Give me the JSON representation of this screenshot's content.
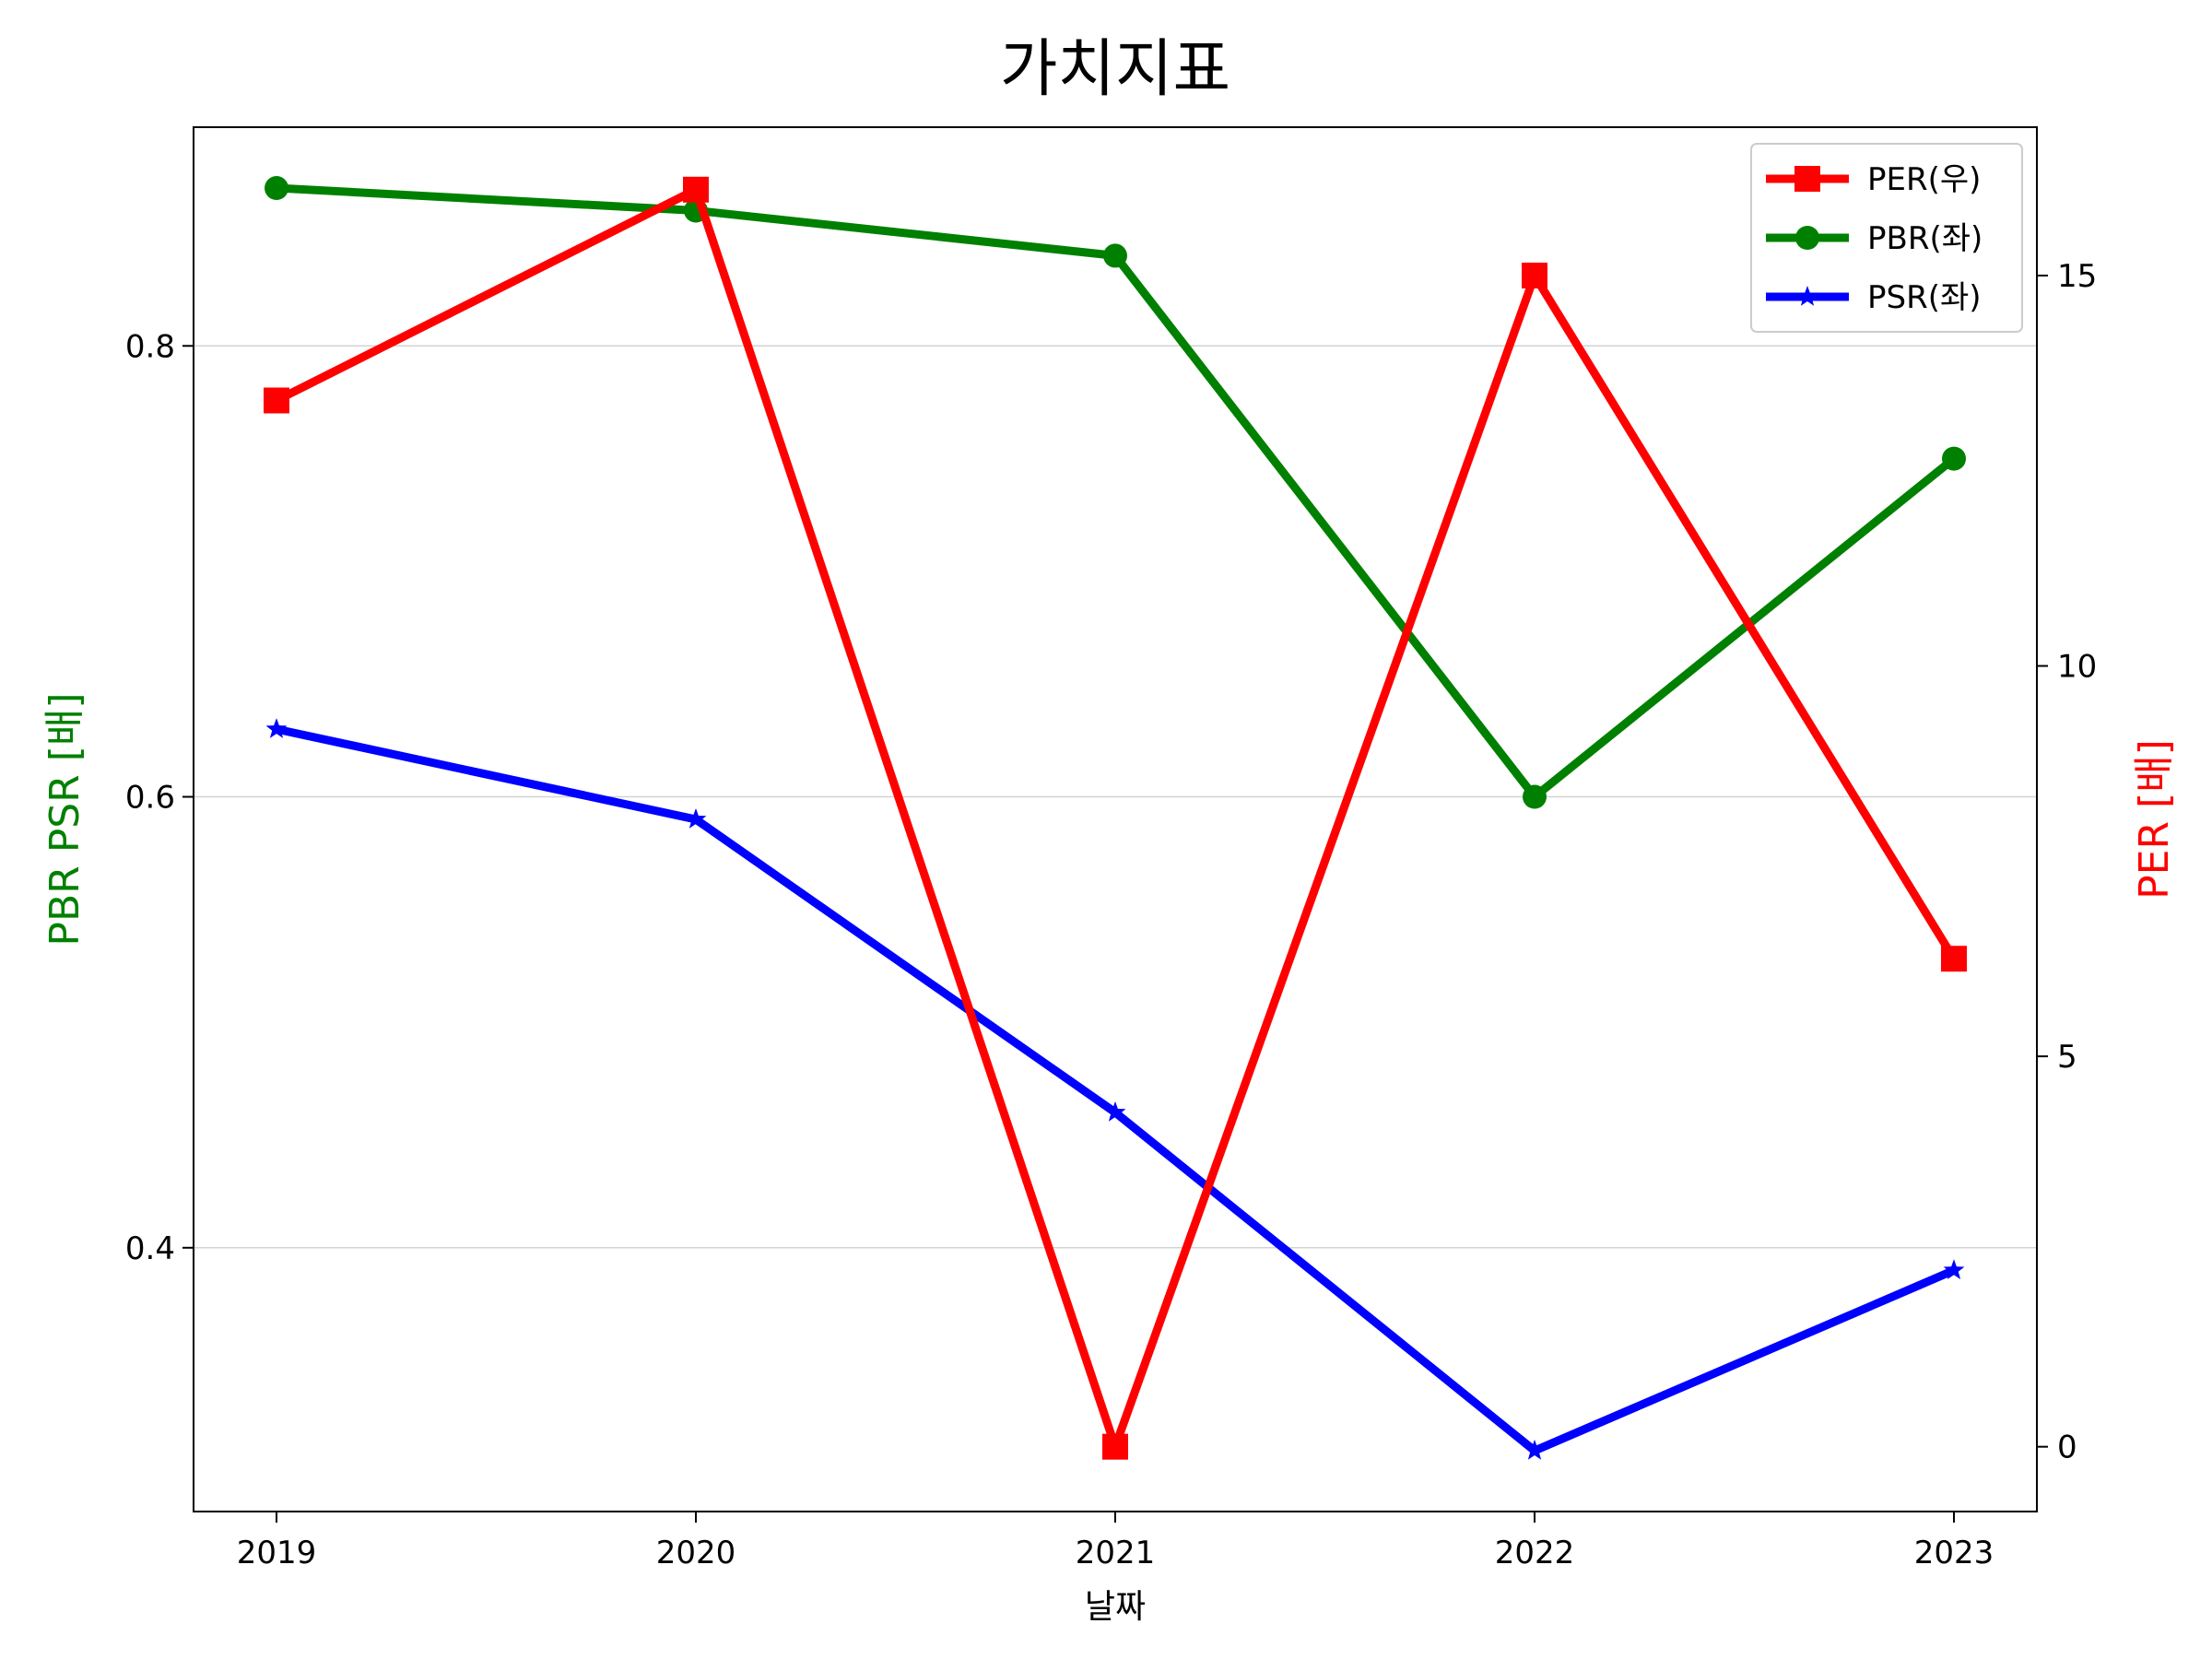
{
  "chart_data": {
    "type": "line",
    "title": "가치지표",
    "xlabel": "날짜",
    "ylabel_left": "PBR PSR [배]",
    "ylabel_right": "PER [배]",
    "categories": [
      "2019",
      "2020",
      "2021",
      "2022",
      "2023"
    ],
    "left_axis": {
      "ylim": [
        0.283,
        0.897
      ],
      "ticks": [
        "0.4",
        "0.6",
        "0.8"
      ],
      "color": "#008000"
    },
    "right_axis": {
      "ylim": [
        -0.83,
        16.9
      ],
      "ticks": [
        "0",
        "5",
        "10",
        "15"
      ],
      "color": "#ff0000"
    },
    "grid": {
      "horizontal": true,
      "axis": "left"
    },
    "legend_position": "top-right",
    "series": [
      {
        "name": "PER(우)",
        "axis": "right",
        "color": "#ff0000",
        "marker": "square",
        "values": [
          13.4,
          16.1,
          0,
          15.0,
          6.25
        ]
      },
      {
        "name": "PBR(좌)",
        "axis": "left",
        "color": "#008000",
        "marker": "circle",
        "values": [
          0.87,
          0.86,
          0.84,
          0.6,
          0.75
        ]
      },
      {
        "name": "PSR(좌)",
        "axis": "left",
        "color": "#0000ff",
        "marker": "star",
        "values": [
          0.63,
          0.59,
          0.46,
          0.31,
          0.39
        ]
      }
    ]
  }
}
